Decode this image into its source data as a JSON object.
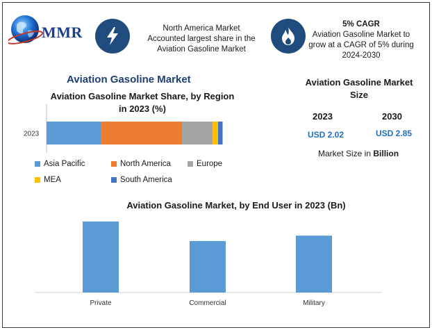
{
  "logo": {
    "text": "MMR"
  },
  "header": {
    "left_text": "North America Market Accounted largest share in the Aviation Gasoline Market",
    "cagr_title": "5% CAGR",
    "cagr_text": "Aviation Gasoline Market to grow at a CAGR of 5% during 2024-2030"
  },
  "colors": {
    "icon_bg": "#1f4b7d",
    "asia_pacific": "#5b9bd5",
    "north_america": "#ed7d31",
    "europe": "#a5a5a5",
    "mea": "#ffc000",
    "south_america": "#4472c4",
    "bar": "#5b9bd5"
  },
  "icons": {
    "left": "lightning-icon",
    "right": "flame-icon",
    "logo": "globe-icon"
  },
  "market_title": "Aviation Gasoline Market",
  "size": {
    "title": "Aviation Gasoline Market Size",
    "year1": "2023",
    "year2": "2030",
    "value1": "USD 2.02",
    "value2": "USD 2.85",
    "caption_prefix": "Market Size in ",
    "caption_bold": "Billion"
  },
  "chart_data": [
    {
      "type": "bar",
      "orientation": "horizontal-stacked",
      "title": "Aviation Gasoline Market Share, by Region in 2023 (%)",
      "categories": [
        "2023"
      ],
      "series": [
        {
          "name": "Asia Pacific",
          "values": [
            30
          ]
        },
        {
          "name": "North America",
          "values": [
            45
          ]
        },
        {
          "name": "Europe",
          "values": [
            17
          ]
        },
        {
          "name": "MEA",
          "values": [
            3
          ]
        },
        {
          "name": "South America",
          "values": [
            2.5
          ]
        }
      ],
      "legend": "bottom"
    },
    {
      "type": "bar",
      "title": "Aviation Gasoline Market, by End User in 2023 (Bn)",
      "categories": [
        "Private",
        "Commercial",
        "Military"
      ],
      "values": [
        0.8,
        0.58,
        0.64
      ],
      "ylim": [
        0,
        0.9
      ]
    }
  ]
}
